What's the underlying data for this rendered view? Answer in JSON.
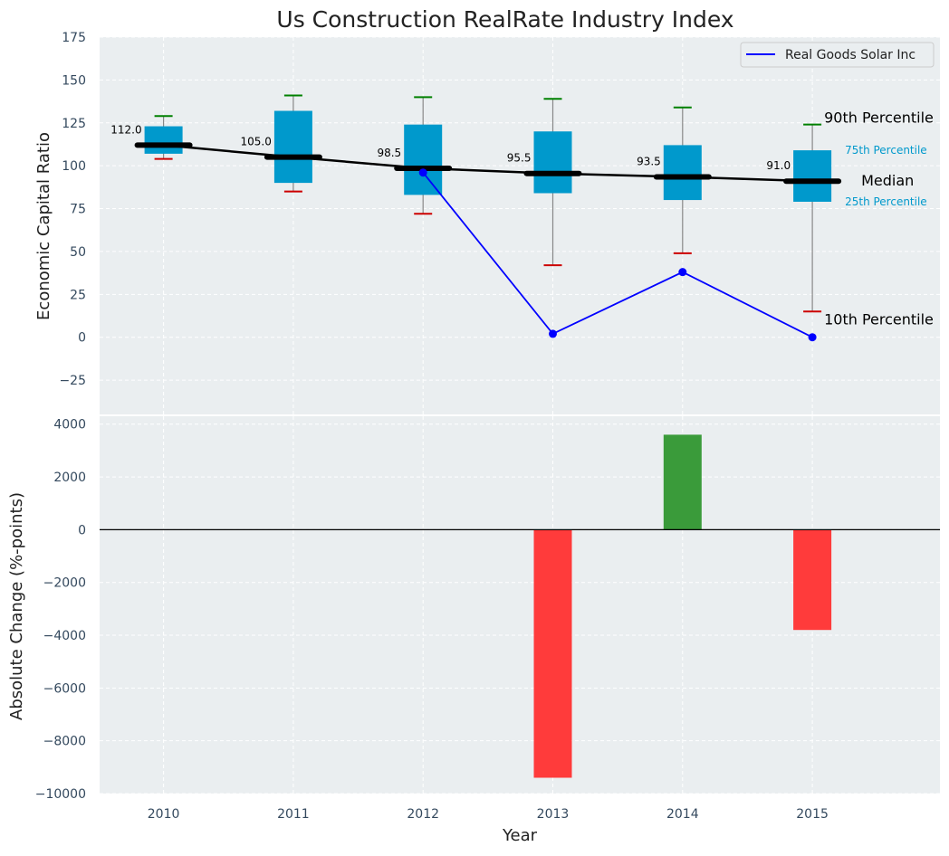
{
  "title": "Us Construction RealRate Industry Index",
  "colors": {
    "panel_bg": "#eaeef0",
    "box_fill": "#0099cc",
    "median_line": "#000000",
    "company_line": "#0000ff",
    "p90_cap": "#008000",
    "p10_cap": "#cc0000",
    "whisker": "#888888",
    "bar_positive": "#3a9b3a",
    "bar_negative": "#ff3b3b",
    "pct_label": "#0099cc"
  },
  "chart_data": [
    {
      "type": "box",
      "ylabel": "Economic Capital Ratio",
      "ylim": [
        -45,
        175
      ],
      "yticks": [
        -25,
        0,
        25,
        50,
        75,
        100,
        125,
        150,
        175
      ],
      "ytick_labels": [
        "−25",
        "0",
        "25",
        "50",
        "75",
        "100",
        "125",
        "150",
        "175"
      ],
      "categories": [
        "2010",
        "2011",
        "2012",
        "2013",
        "2014",
        "2015"
      ],
      "grid": true,
      "percentiles": {
        "p10": [
          104,
          85,
          72,
          42,
          49,
          15
        ],
        "p25": [
          107,
          90,
          83,
          84,
          80,
          79
        ],
        "median": [
          112.0,
          105.0,
          98.5,
          95.5,
          93.5,
          91.0
        ],
        "p75": [
          123,
          132,
          124,
          120,
          112,
          109
        ],
        "p90": [
          129,
          141,
          140,
          139,
          134,
          124
        ]
      },
      "median_labels": [
        "112.0",
        "105.0",
        "98.5",
        "95.5",
        "93.5",
        "91.0"
      ],
      "company_series": {
        "name": "Real Goods Solar Inc",
        "values": [
          null,
          null,
          96,
          2,
          38,
          0
        ]
      },
      "legend": {
        "position": "top-right",
        "label": "Real Goods Solar Inc"
      },
      "annotations": {
        "p90": "90th Percentile",
        "p75": "75th Percentile",
        "median": "Median",
        "p25": "25th Percentile",
        "p10": "10th Percentile"
      }
    },
    {
      "type": "bar",
      "ylabel": "Absolute Change (%-points)",
      "xlabel": "Year",
      "ylim": [
        -10000,
        4300
      ],
      "yticks": [
        -10000,
        -8000,
        -6000,
        -4000,
        -2000,
        0,
        2000,
        4000
      ],
      "ytick_labels": [
        "−10000",
        "−8000",
        "−6000",
        "−4000",
        "−2000",
        "0",
        "2000",
        "4000"
      ],
      "categories": [
        "2010",
        "2011",
        "2012",
        "2013",
        "2014",
        "2015"
      ],
      "values": [
        null,
        null,
        null,
        -9400,
        3600,
        -3800
      ],
      "grid": true
    }
  ]
}
